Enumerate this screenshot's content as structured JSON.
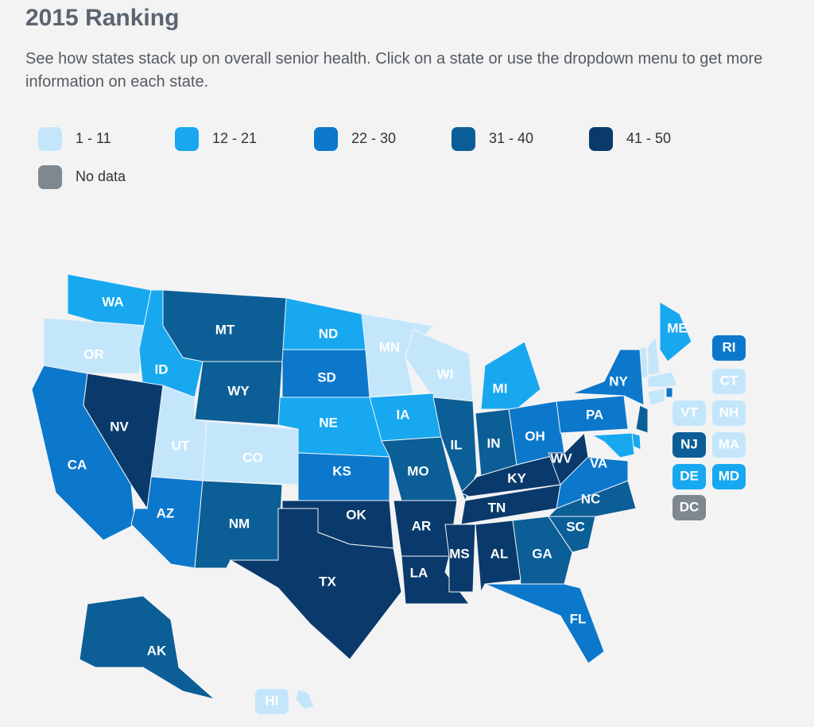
{
  "header": {
    "title": "2015 Ranking",
    "description": "See how states stack up on overall senior health. Click on a state or use the dropdown menu to get more information on each state."
  },
  "legend": [
    {
      "label": "1 - 11",
      "color": "#c4e6fb",
      "states": [
        "OR",
        "UT",
        "CO",
        "MN",
        "WI",
        "HI",
        "CT",
        "VT",
        "NH",
        "MA"
      ]
    },
    {
      "label": "12 - 21",
      "color": "#17a8f0",
      "states": [
        "WA",
        "ID",
        "ND",
        "NE",
        "IA",
        "MI",
        "ME",
        "DE",
        "MD"
      ]
    },
    {
      "label": "22 - 30",
      "color": "#0b78cc",
      "states": [
        "CA",
        "AZ",
        "SD",
        "KS",
        "OH",
        "VA",
        "PA",
        "NY",
        "FL",
        "RI"
      ]
    },
    {
      "label": "31 - 40",
      "color": "#0b5e96",
      "states": [
        "MT",
        "WY",
        "NM",
        "MO",
        "IL",
        "IN",
        "GA",
        "SC",
        "NC",
        "AK",
        "NJ"
      ]
    },
    {
      "label": "41 - 50",
      "color": "#0a3a6c",
      "states": [
        "NV",
        "OK",
        "TX",
        "AR",
        "LA",
        "KY",
        "TN",
        "MS",
        "AL",
        "WV"
      ]
    },
    {
      "label": "No data",
      "color": "#7f878f",
      "states": [
        "DC"
      ]
    }
  ]
}
